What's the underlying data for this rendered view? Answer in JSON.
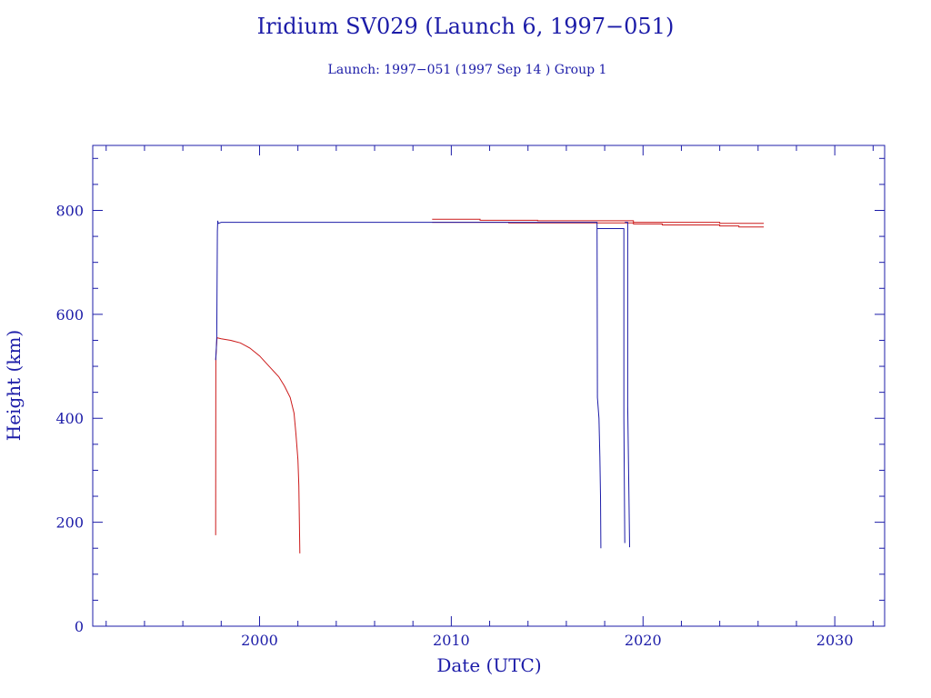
{
  "chart_data": {
    "type": "line",
    "title": "Iridium SV029 (Launch 6, 1997−051)",
    "subtitle": "Launch: 1997−051  (1997 Sep 14 )  Group 1",
    "xlabel": "Date (UTC)",
    "ylabel": "Height (km)",
    "xlim": [
      1991.3,
      2032.6
    ],
    "ylim": [
      0,
      925
    ],
    "x_major_ticks": [
      2000,
      2010,
      2020,
      2030
    ],
    "x_minor_step": 2,
    "y_major_ticks": [
      0,
      200,
      400,
      600,
      800
    ],
    "y_minor_step": 50,
    "grid": false,
    "legend": "none",
    "series_colors": {
      "apogee": "#cc1a1a",
      "perigee": "#1c1ca8"
    },
    "frame_color": "#1c1ca8",
    "series": [
      {
        "color": "#cc1a1a",
        "segments": [
          [
            [
              1997.71,
              175
            ],
            [
              1997.72,
              515
            ],
            [
              1997.75,
              535
            ],
            [
              1997.78,
              555
            ],
            [
              1998.0,
              553
            ],
            [
              1998.5,
              550
            ],
            [
              1999.0,
              545
            ],
            [
              1999.5,
              535
            ],
            [
              2000.0,
              520
            ],
            [
              2000.5,
              500
            ],
            [
              2001.0,
              480
            ],
            [
              2001.3,
              462
            ],
            [
              2001.6,
              440
            ],
            [
              2001.8,
              410
            ],
            [
              2001.9,
              370
            ],
            [
              2002.0,
              320
            ],
            [
              2002.05,
              270
            ],
            [
              2002.08,
              200
            ],
            [
              2002.1,
              140
            ]
          ],
          [
            [
              2009.0,
              783
            ],
            [
              2011.5,
              783
            ],
            [
              2011.5,
              781
            ],
            [
              2014.5,
              781
            ],
            [
              2014.5,
              780
            ],
            [
              2019.5,
              780
            ],
            [
              2019.5,
              777
            ],
            [
              2024.0,
              777
            ],
            [
              2024.0,
              775
            ],
            [
              2026.3,
              775
            ]
          ],
          [
            [
              2009.0,
              777
            ],
            [
              2013.0,
              777
            ],
            [
              2013.0,
              776
            ],
            [
              2019.5,
              776
            ],
            [
              2019.5,
              774
            ],
            [
              2021.0,
              774
            ],
            [
              2021.0,
              772
            ],
            [
              2024.0,
              772
            ],
            [
              2024.0,
              770
            ],
            [
              2025.0,
              770
            ],
            [
              2025.0,
              768
            ],
            [
              2026.3,
              768
            ]
          ]
        ]
      },
      {
        "color": "#1c1ca8",
        "segments": [
          [
            [
              1997.71,
              512
            ],
            [
              1997.74,
              530
            ],
            [
              1997.77,
              555
            ],
            [
              1997.8,
              760
            ],
            [
              1997.82,
              780
            ],
            [
              1997.85,
              775
            ],
            [
              1998.0,
              777
            ],
            [
              2017.6,
              777
            ],
            [
              2017.6,
              770
            ],
            [
              2017.62,
              440
            ],
            [
              2017.7,
              400
            ],
            [
              2017.75,
              325
            ],
            [
              2017.78,
              250
            ],
            [
              2017.8,
              150
            ]
          ],
          [
            [
              2017.6,
              765
            ],
            [
              2019.0,
              765
            ],
            [
              2019.0,
              400
            ],
            [
              2019.02,
              300
            ],
            [
              2019.05,
              160
            ]
          ],
          [
            [
              2019.05,
              777
            ],
            [
              2019.2,
              777
            ],
            [
              2019.2,
              425
            ],
            [
              2019.25,
              285
            ],
            [
              2019.3,
              152
            ]
          ]
        ]
      }
    ]
  }
}
